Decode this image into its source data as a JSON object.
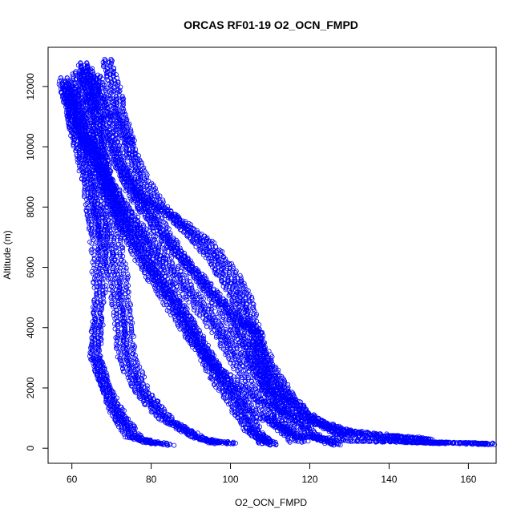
{
  "chart_data": {
    "type": "scatter",
    "title": "ORCAS RF01-19 O2_OCN_FMPD",
    "xlabel": "O2_OCN_FMPD",
    "ylabel": "Altitude (m)",
    "xlim": [
      54,
      167
    ],
    "ylim": [
      -500,
      13300
    ],
    "x_ticks": [
      60,
      80,
      100,
      120,
      140,
      160
    ],
    "y_ticks": [
      0,
      2000,
      4000,
      6000,
      8000,
      10000,
      12000
    ],
    "marker": "open-circle",
    "color": "#0000ff",
    "grid": false,
    "legend": "none",
    "series": [
      {
        "profiles": [
          [
            [
              57,
              12300
            ],
            [
              59,
              11000
            ],
            [
              62,
              9500
            ],
            [
              64,
              8000
            ],
            [
              65,
              7000
            ],
            [
              66,
              5000
            ],
            [
              65,
              3000
            ],
            [
              68,
              2000
            ],
            [
              72,
              1000
            ],
            [
              76,
              300
            ],
            [
              84,
              100
            ]
          ],
          [
            [
              58,
              12200
            ],
            [
              62,
              10500
            ],
            [
              68,
              8500
            ],
            [
              74,
              7000
            ],
            [
              82,
              5500
            ],
            [
              90,
              4000
            ],
            [
              96,
              2500
            ],
            [
              102,
              1500
            ],
            [
              106,
              500
            ],
            [
              110,
              100
            ]
          ],
          [
            [
              60,
              12400
            ],
            [
              64,
              11000
            ],
            [
              68,
              9000
            ],
            [
              72,
              7800
            ],
            [
              80,
              6500
            ],
            [
              88,
              5200
            ],
            [
              96,
              3800
            ],
            [
              102,
              2500
            ],
            [
              108,
              1200
            ],
            [
              115,
              200
            ]
          ],
          [
            [
              62,
              12800
            ],
            [
              66,
              11500
            ],
            [
              70,
              10000
            ],
            [
              74,
              8500
            ],
            [
              82,
              7000
            ],
            [
              92,
              5500
            ],
            [
              100,
              4000
            ],
            [
              106,
              2800
            ],
            [
              112,
              1600
            ],
            [
              120,
              400
            ],
            [
              126,
              100
            ]
          ],
          [
            [
              68,
              12900
            ],
            [
              70,
              12000
            ],
            [
              72,
              11000
            ],
            [
              74,
              10000
            ],
            [
              76,
              8500
            ],
            [
              80,
              7800
            ],
            [
              86,
              6500
            ],
            [
              94,
              5200
            ],
            [
              102,
              4200
            ],
            [
              106,
              3800
            ],
            [
              108,
              2000
            ],
            [
              112,
              800
            ],
            [
              118,
              200
            ]
          ],
          [
            [
              58,
              12000
            ],
            [
              61,
              10800
            ],
            [
              64,
              9800
            ],
            [
              66,
              8500
            ],
            [
              67,
              6500
            ],
            [
              66,
              4500
            ],
            [
              65,
              3200
            ],
            [
              67,
              2200
            ],
            [
              70,
              1200
            ],
            [
              74,
              400
            ],
            [
              80,
              150
            ]
          ],
          [
            [
              59,
              12100
            ],
            [
              63,
              10400
            ],
            [
              67,
              9000
            ],
            [
              72,
              7500
            ],
            [
              78,
              6200
            ],
            [
              84,
              5000
            ],
            [
              90,
              3600
            ],
            [
              95,
              2400
            ],
            [
              100,
              1400
            ],
            [
              104,
              600
            ],
            [
              108,
              150
            ]
          ],
          [
            [
              61,
              12500
            ],
            [
              65,
              11200
            ],
            [
              70,
              9600
            ],
            [
              76,
              8200
            ],
            [
              84,
              6800
            ],
            [
              92,
              5600
            ],
            [
              100,
              4400
            ],
            [
              104,
              3200
            ],
            [
              108,
              2000
            ],
            [
              114,
              1000
            ],
            [
              122,
              300
            ]
          ],
          [
            [
              63,
              12600
            ],
            [
              68,
              11000
            ],
            [
              72,
              9200
            ],
            [
              78,
              8200
            ],
            [
              86,
              7600
            ],
            [
              94,
              6800
            ],
            [
              100,
              5800
            ],
            [
              104,
              4800
            ],
            [
              106,
              3400
            ],
            [
              110,
              2200
            ],
            [
              118,
              1200
            ],
            [
              126,
              500
            ],
            [
              140,
              250
            ],
            [
              150,
              180
            ],
            [
              160,
              160
            ],
            [
              165,
              140
            ]
          ],
          [
            [
              64,
              12300
            ],
            [
              66,
              10000
            ],
            [
              68,
              8600
            ],
            [
              70,
              7200
            ],
            [
              72,
              5800
            ],
            [
              73,
              4400
            ],
            [
              74,
              3000
            ],
            [
              78,
              1800
            ],
            [
              84,
              900
            ],
            [
              92,
              300
            ],
            [
              100,
              150
            ]
          ],
          [
            [
              60,
              11900
            ],
            [
              64,
              10200
            ],
            [
              69,
              8800
            ],
            [
              75,
              7400
            ],
            [
              81,
              6000
            ],
            [
              87,
              4600
            ],
            [
              92,
              3400
            ],
            [
              98,
              2200
            ],
            [
              106,
              1100
            ],
            [
              116,
              400
            ],
            [
              130,
              250
            ],
            [
              146,
              200
            ],
            [
              154,
              180
            ]
          ],
          [
            [
              62,
              12700
            ],
            [
              64,
              11600
            ],
            [
              66,
              10300
            ],
            [
              68,
              8900
            ],
            [
              71,
              7600
            ],
            [
              76,
              6300
            ],
            [
              82,
              5100
            ],
            [
              88,
              3900
            ],
            [
              94,
              2900
            ],
            [
              104,
              1800
            ],
            [
              116,
              1000
            ],
            [
              128,
              600
            ],
            [
              140,
              400
            ],
            [
              150,
              300
            ]
          ],
          [
            [
              58,
              11800
            ],
            [
              60,
              10500
            ],
            [
              63,
              9200
            ],
            [
              66,
              7800
            ],
            [
              68,
              6600
            ],
            [
              70,
              5400
            ],
            [
              71,
              4200
            ],
            [
              72,
              3000
            ],
            [
              76,
              1900
            ],
            [
              82,
              1000
            ],
            [
              90,
              400
            ],
            [
              96,
              150
            ]
          ],
          [
            [
              65,
              12400
            ],
            [
              69,
              11300
            ],
            [
              73,
              10200
            ],
            [
              77,
              9000
            ],
            [
              82,
              8000
            ],
            [
              88,
              7200
            ],
            [
              94,
              6400
            ],
            [
              98,
              5500
            ],
            [
              102,
              4600
            ],
            [
              106,
              3600
            ],
            [
              110,
              2600
            ],
            [
              114,
              1700
            ],
            [
              120,
              900
            ],
            [
              128,
              400
            ]
          ],
          [
            [
              57,
              12100
            ],
            [
              60,
              10900
            ],
            [
              64,
              9700
            ],
            [
              70,
              8400
            ],
            [
              78,
              7100
            ],
            [
              86,
              5800
            ],
            [
              94,
              4500
            ],
            [
              100,
              3300
            ],
            [
              108,
              2100
            ],
            [
              118,
              1100
            ],
            [
              130,
              500
            ],
            [
              148,
              300
            ]
          ]
        ]
      }
    ]
  }
}
